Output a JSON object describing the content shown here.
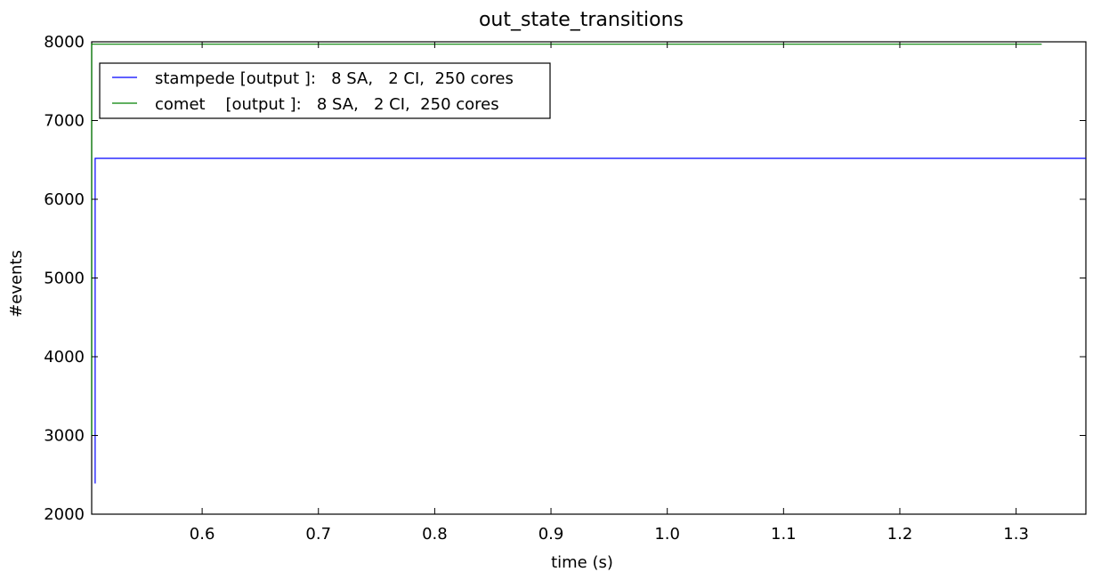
{
  "chart_data": {
    "type": "line",
    "title": "out_state_transitions",
    "xlabel": "time (s)",
    "ylabel": "#events",
    "xlim": [
      0.505,
      1.36
    ],
    "ylim": [
      2000,
      8000
    ],
    "x_ticks": [
      0.6,
      0.7,
      0.8,
      0.9,
      1.0,
      1.1,
      1.2,
      1.3
    ],
    "x_tick_labels": [
      "0.6",
      "0.7",
      "0.8",
      "0.9",
      "1.0",
      "1.1",
      "1.2",
      "1.3"
    ],
    "y_ticks": [
      2000,
      3000,
      4000,
      5000,
      6000,
      7000,
      8000
    ],
    "y_tick_labels": [
      "2000",
      "3000",
      "4000",
      "5000",
      "6000",
      "7000",
      "8000"
    ],
    "grid": false,
    "legend_position": "upper-left",
    "series": [
      {
        "name": "stampede [output ]:   8 SA,   2 CI,  250 cores",
        "color": "#0000ff",
        "x": [
          0.508,
          0.508,
          1.36
        ],
        "y": [
          2390,
          6520,
          6520
        ]
      },
      {
        "name": "comet    [output ]:   8 SA,   2 CI,  250 cores",
        "color": "#008000",
        "x": [
          0.505,
          0.505,
          1.322
        ],
        "y": [
          3000,
          7970,
          7970
        ]
      }
    ]
  }
}
